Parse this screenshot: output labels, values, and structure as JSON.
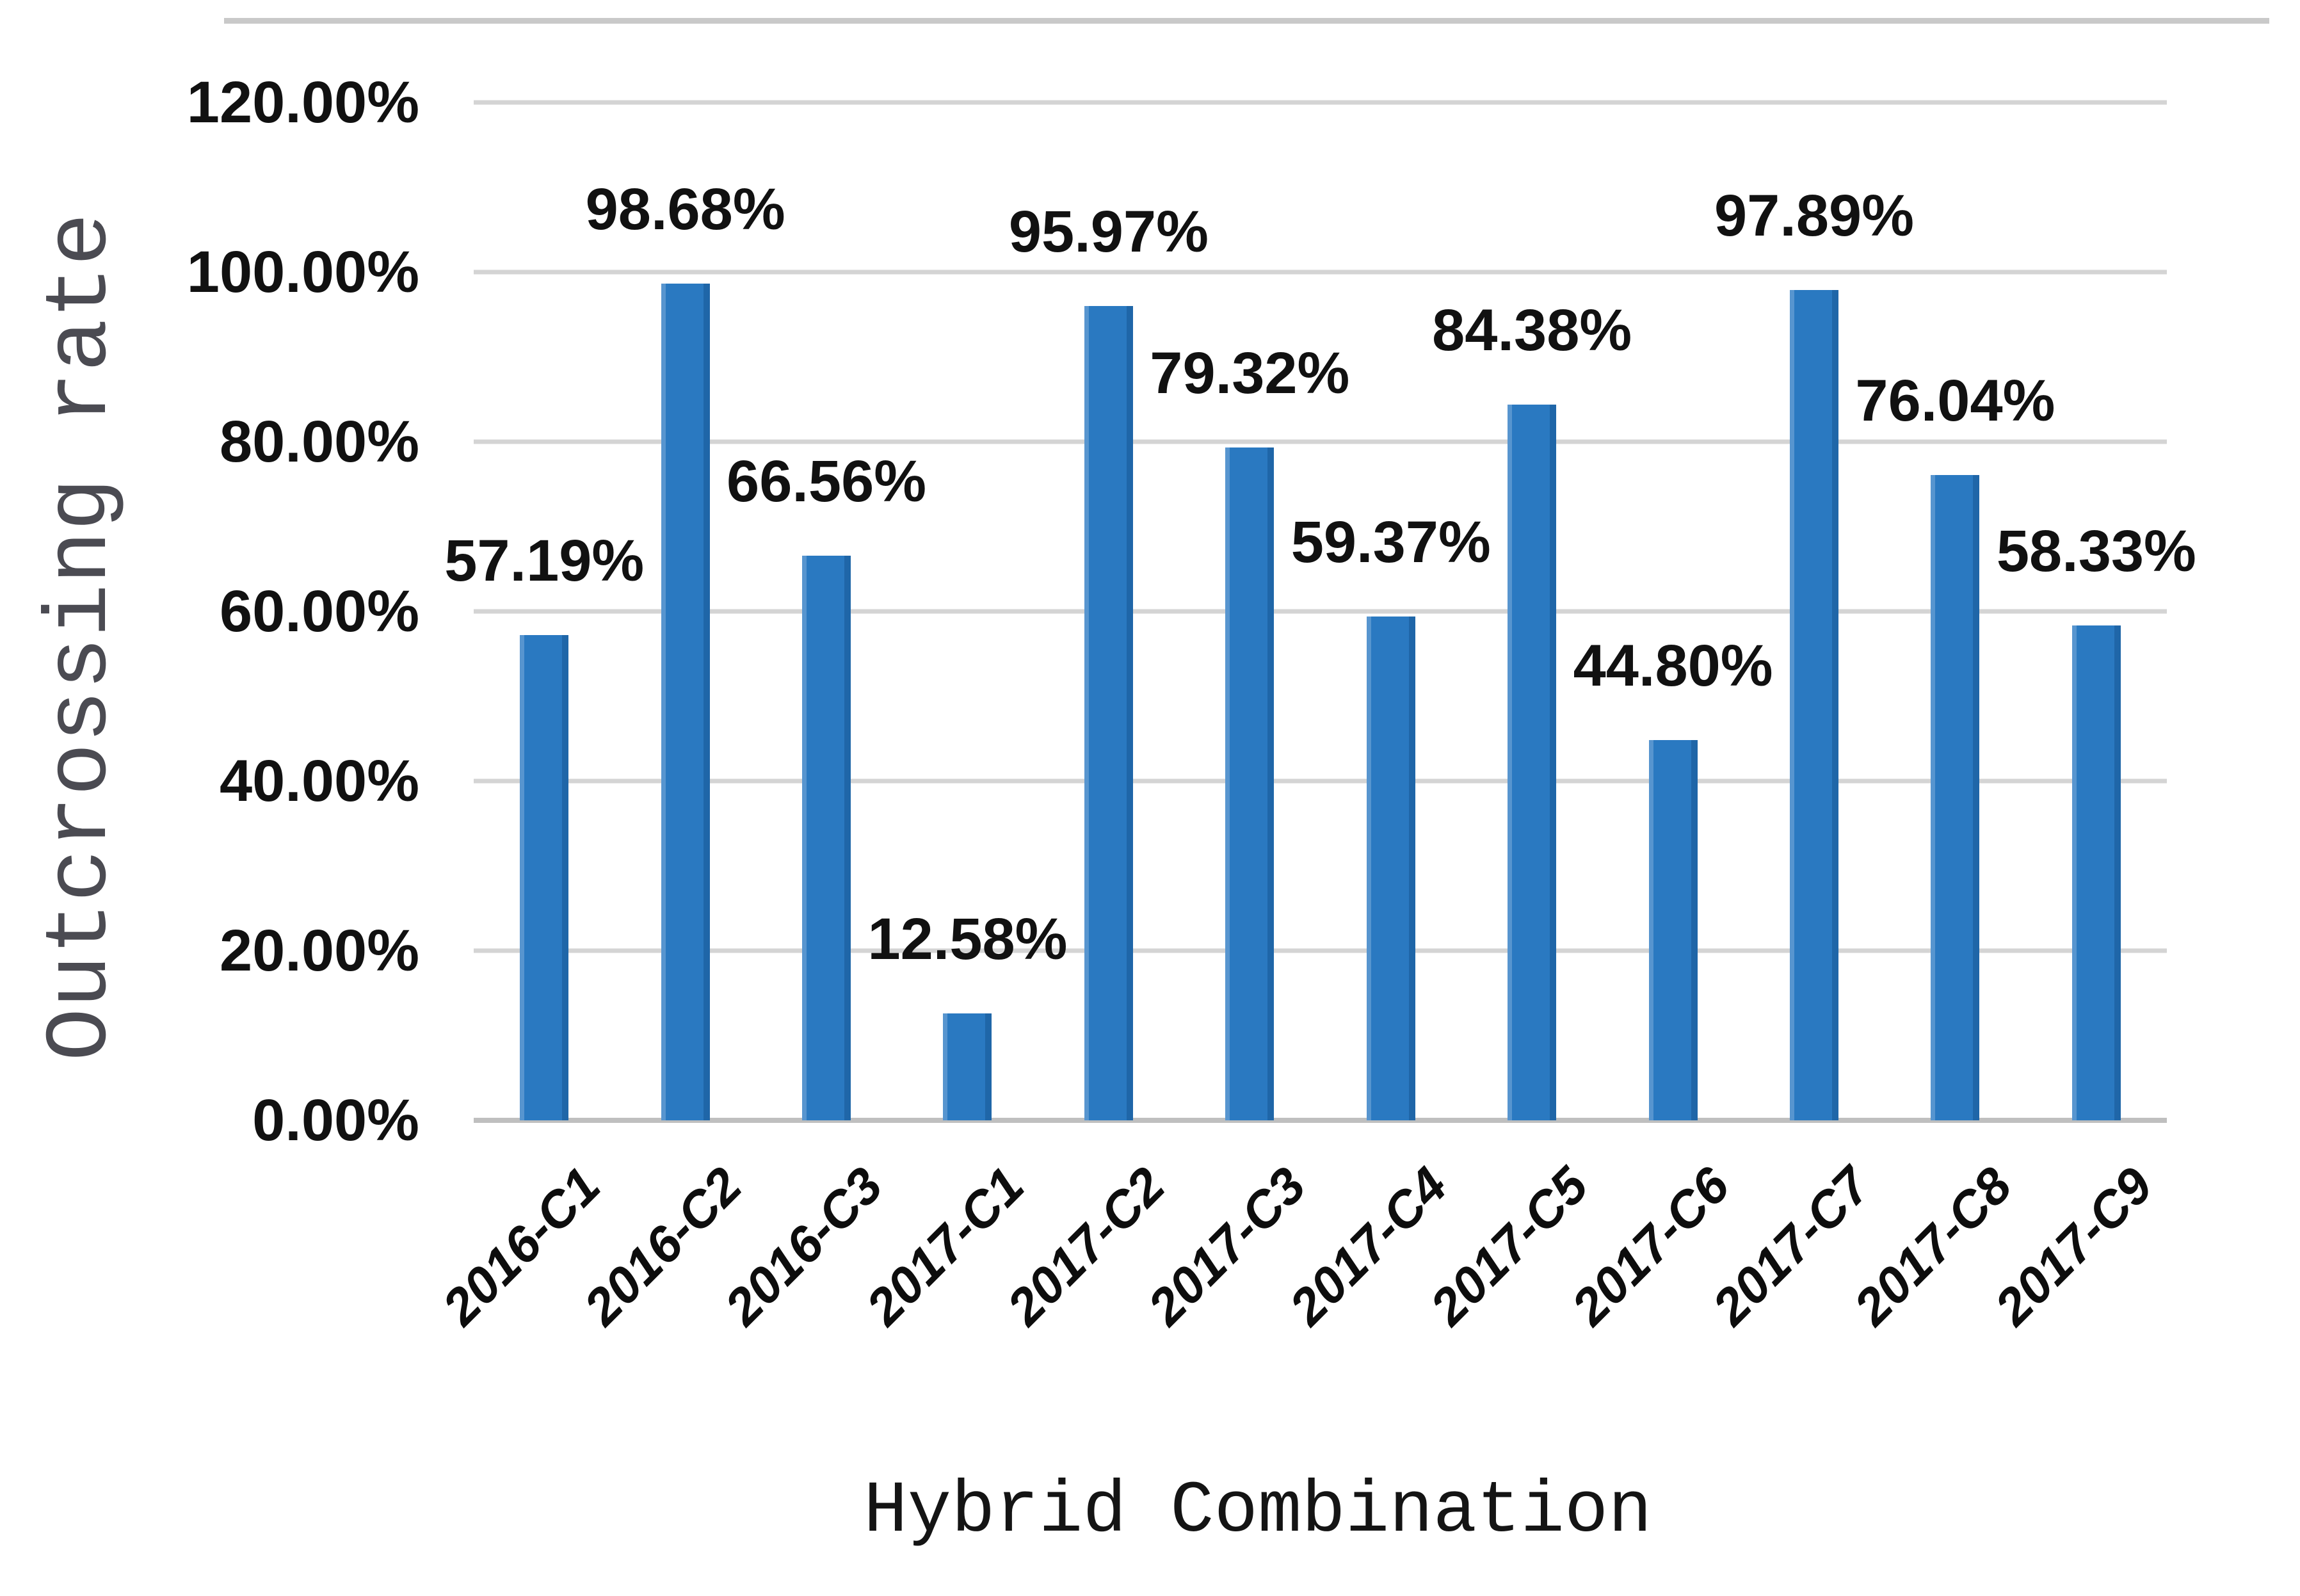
{
  "figure": {
    "background": "#ffffff",
    "top_border_color": "#c9c9c9"
  },
  "chart_data": {
    "type": "bar",
    "title": "",
    "xlabel": "Hybrid Combination",
    "ylabel": "Outcrossing rate",
    "categories": [
      "2016-C1",
      "2016-C2",
      "2016-C3",
      "2017-C1",
      "2017-C2",
      "2017-C3",
      "2017-C4",
      "2017-C5",
      "2017-C6",
      "2017-C7",
      "2017-C8",
      "2017-C9"
    ],
    "values": [
      57.19,
      98.68,
      66.56,
      12.58,
      95.97,
      79.32,
      59.37,
      84.38,
      44.8,
      97.89,
      76.04,
      58.33
    ],
    "value_labels": [
      "57.19%",
      "98.68%",
      "66.56%",
      "12.58%",
      "95.97%",
      "79.32%",
      "59.37%",
      "84.38%",
      "44.80%",
      "97.89%",
      "76.04%",
      "58.33%"
    ],
    "y_ticks": [
      "120.00%",
      "100.00%",
      "80.00%",
      "60.00%",
      "40.00%",
      "20.00%",
      "0.00%"
    ],
    "ylim": [
      0,
      120
    ],
    "grid": true,
    "legend": "none",
    "bar_color": "#2a79c1",
    "gridline_color": "#d4d4d4",
    "axis_line_color": "#bfbfbf",
    "label_color": "#111111",
    "ytitle_color": "#4b4b52"
  }
}
